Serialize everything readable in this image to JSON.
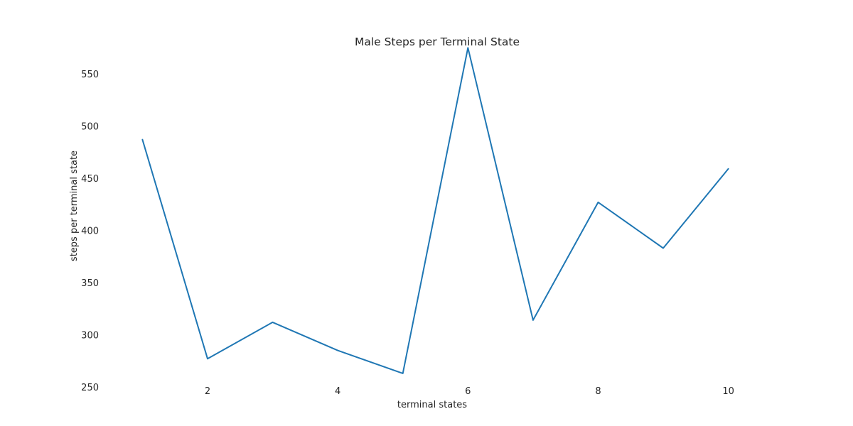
{
  "chart_data": {
    "type": "line",
    "title": "Male Steps per Terminal State",
    "xlabel": "terminal states",
    "ylabel": "steps per terminal state",
    "x": [
      1,
      2,
      3,
      4,
      5,
      6,
      7,
      8,
      9,
      10
    ],
    "series": [
      {
        "values": [
          487,
          277,
          312,
          285,
          263,
          575,
          314,
          427,
          383,
          459
        ],
        "color": "#1f77b4"
      }
    ],
    "xlim": [
      0.45,
      10.55
    ],
    "ylim": [
      250,
      580
    ],
    "xticks": [
      2,
      4,
      6,
      8,
      10
    ],
    "yticks": [
      250,
      300,
      350,
      400,
      450,
      500,
      550
    ],
    "grid": false,
    "legend": "none",
    "background": "#ffffff"
  }
}
